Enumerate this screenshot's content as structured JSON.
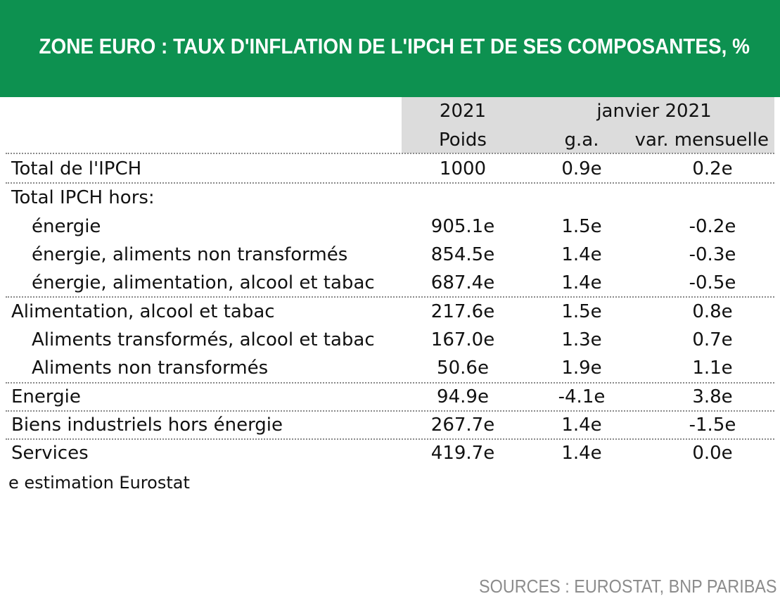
{
  "title": "ZONE EURO : TAUX D'INFLATION DE L'IPCH ET DE SES COMPOSANTES, %",
  "colors": {
    "banner": "#0d9150",
    "header_shade": "#dcdcdc",
    "sources_text": "#8c8c8c"
  },
  "header": {
    "col1_top": "2021",
    "col1_bottom": "Poids",
    "group_label": "janvier 2021",
    "col2": "g.a.",
    "col3": "var. mensuelle"
  },
  "rows": [
    {
      "label": "Total de l'IPCH",
      "weight": "1000",
      "ga": "0.9e",
      "mom": "0.2e"
    },
    {
      "label": "Total IPCH hors:",
      "weight": "",
      "ga": "",
      "mom": ""
    },
    {
      "label": "énergie",
      "weight": "905.1e",
      "ga": "1.5e",
      "mom": "-0.2e"
    },
    {
      "label": "énergie, aliments non transformés",
      "weight": "854.5e",
      "ga": "1.4e",
      "mom": "-0.3e"
    },
    {
      "label": "énergie, alimentation, alcool et tabac",
      "weight": "687.4e",
      "ga": "1.4e",
      "mom": "-0.5e"
    },
    {
      "label": "Alimentation, alcool et tabac",
      "weight": "217.6e",
      "ga": "1.5e",
      "mom": "0.8e"
    },
    {
      "label": "Aliments transformés, alcool et tabac",
      "weight": "167.0e",
      "ga": "1.3e",
      "mom": "0.7e"
    },
    {
      "label": "Aliments non transformés",
      "weight": "50.6e",
      "ga": "1.9e",
      "mom": "1.1e"
    },
    {
      "label": "Energie",
      "weight": "94.9e",
      "ga": "-4.1e",
      "mom": "3.8e"
    },
    {
      "label": "Biens industriels hors énergie",
      "weight": "267.7e",
      "ga": "1.4e",
      "mom": "-1.5e"
    },
    {
      "label": "Services",
      "weight": "419.7e",
      "ga": "1.4e",
      "mom": "0.0e"
    }
  ],
  "note": "e estimation Eurostat",
  "sources": "SOURCES : EUROSTAT, BNP PARIBAS"
}
